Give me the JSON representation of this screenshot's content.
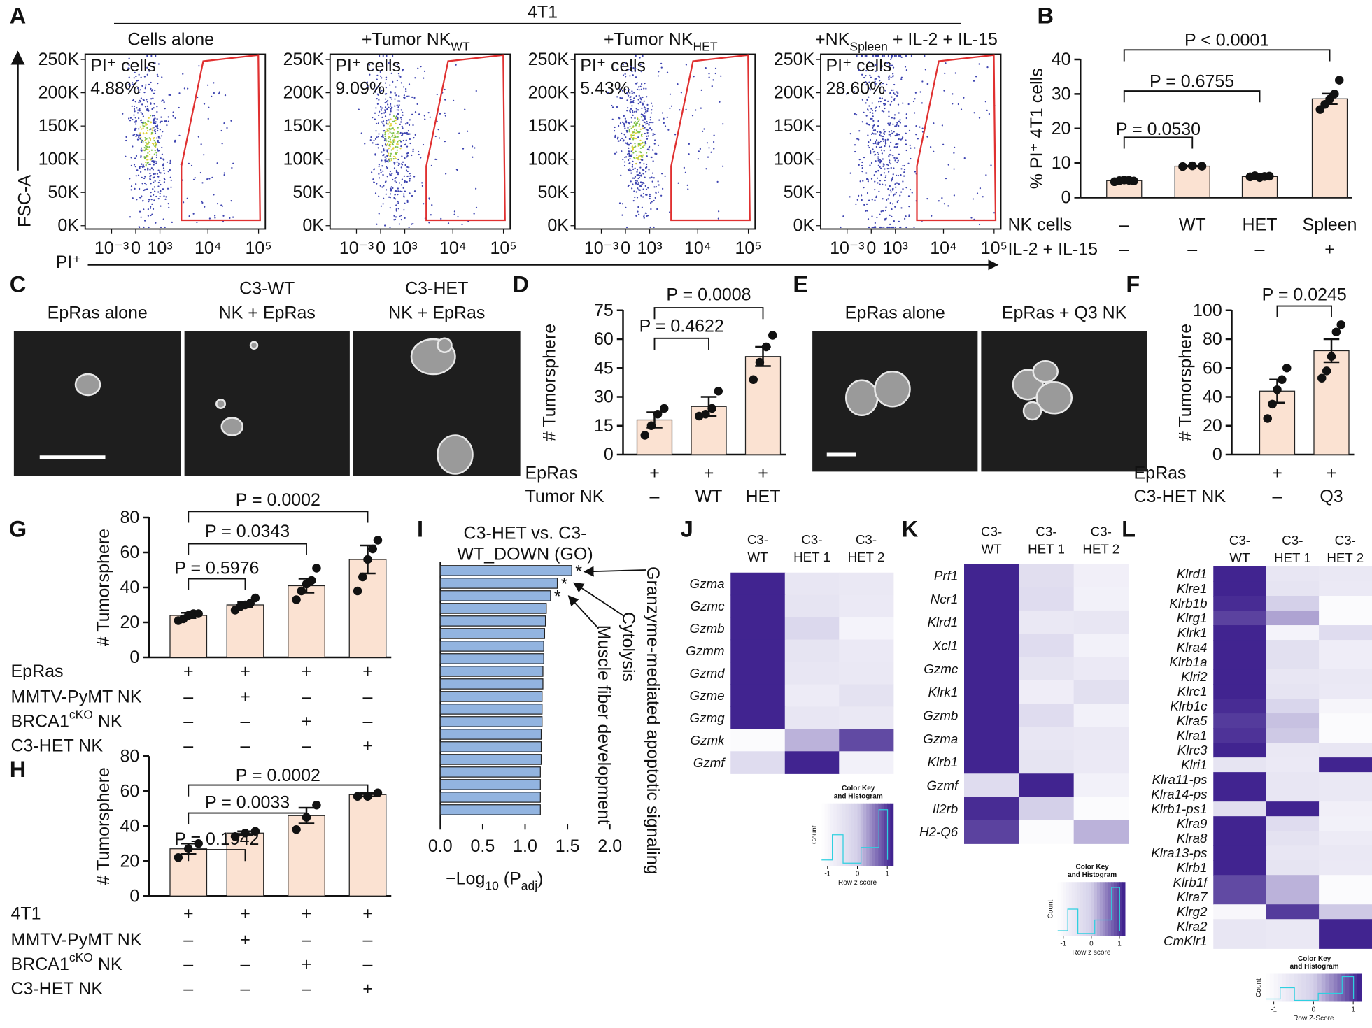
{
  "panel_labels": [
    "A",
    "B",
    "C",
    "D",
    "E",
    "F",
    "G",
    "H",
    "I",
    "J",
    "K",
    "L"
  ],
  "images": [
    {
      "labels": [
        "EpRas alone",
        [
          "C3-WT",
          "NK + EpRas"
        ],
        [
          "C3-HET",
          "NK + EpRas"
        ]
      ]
    },
    {
      "labels": [
        "EpRas alone",
        "EpRas + Q3 NK"
      ]
    }
  ],
  "chart_data": [
    {
      "type": "flow",
      "title": "4T1",
      "ylabel": "FSC-A",
      "xlabel": "PI⁺",
      "xscale": "biexponential",
      "plots": [
        {
          "title": "Cells alone",
          "gate_label": "PI⁺ cells",
          "percent": "4.88%"
        },
        {
          "title": [
            "+Tumor NK",
            "WT"
          ],
          "gate_label": "PI⁺ cells",
          "percent": "9.09%"
        },
        {
          "title": [
            "+Tumor NK",
            "HET"
          ],
          "gate_label": "PI⁺ cells",
          "percent": "5.43%"
        },
        {
          "title": [
            "+NK",
            "Spleen",
            " + IL-2 + IL-15"
          ],
          "gate_label": "PI⁺ cells",
          "percent": "28.60%"
        }
      ],
      "gate_color": "#e03030",
      "xlim": [
        -3700,
        136000
      ],
      "ylim": [
        -5000,
        258000
      ],
      "xticks": [
        {
          "value": -1000,
          "label": "10⁻³"
        },
        0,
        {
          "value": 1000,
          "label": "10³"
        },
        {
          "value": 10000,
          "label": "10⁴"
        },
        {
          "value": 100000,
          "label": "10⁵"
        }
      ],
      "yticks": [
        {
          "value": 0,
          "label": "0K"
        },
        {
          "value": 50000,
          "label": "50K"
        },
        {
          "value": 100000,
          "label": "100K"
        },
        {
          "value": 150000,
          "label": "150K"
        },
        {
          "value": 200000,
          "label": "200K"
        },
        {
          "value": 250000,
          "label": "250K"
        }
      ]
    },
    {
      "type": "bar",
      "ylabel": "% PI⁺ 4T1 cells",
      "values": [
        4.9,
        9.1,
        6.1,
        28.6
      ],
      "errors": [
        0.15,
        0.1,
        0.15,
        1.5
      ],
      "points": [
        [
          4.6,
          4.9,
          5.1,
          5.0,
          4.8
        ],
        [
          9.0,
          9.2,
          9.1
        ],
        [
          6.0,
          6.3,
          5.8,
          6.1,
          6.2
        ],
        [
          25.5,
          27,
          28.5,
          30,
          34
        ]
      ],
      "color": "#fbe2d2",
      "ylim": [
        0,
        40
      ],
      "yticks": [
        0,
        10,
        20,
        30,
        40
      ],
      "conditions": [
        {
          "label": "NK cells",
          "values": [
            "–",
            "WT",
            "HET",
            "Spleen"
          ]
        },
        {
          "label": "IL-2 + IL-15",
          "values": [
            "–",
            "–",
            "–",
            "+"
          ]
        }
      ],
      "comparisons": [
        "P = 0.0530",
        "P = 0.6755",
        "P < 0.0001"
      ]
    },
    {
      "type": "bar",
      "ylabel": "# Tumorsphere",
      "values": [
        18,
        25,
        51
      ],
      "errors": [
        4,
        5,
        5
      ],
      "points": [
        [
          10,
          15,
          21,
          24
        ],
        [
          20,
          21,
          24,
          33
        ],
        [
          39,
          48,
          56,
          62
        ]
      ],
      "color": "#fbe2d2",
      "ylim": [
        0,
        75
      ],
      "yticks": [
        0,
        15,
        30,
        45,
        60,
        75
      ],
      "conditions": [
        {
          "label": "EpRas",
          "values": [
            "+",
            "+",
            "+"
          ]
        },
        {
          "label": "Tumor NK",
          "values": [
            "–",
            "WT",
            "HET"
          ]
        }
      ],
      "comparisons": [
        "P = 0.4622",
        "P = 0.0008"
      ]
    },
    {
      "type": "bar",
      "ylabel": "# Tumorsphere",
      "values": [
        44,
        72
      ],
      "errors": [
        8,
        8
      ],
      "points": [
        [
          25,
          35,
          45,
          52,
          60
        ],
        [
          53,
          58,
          68,
          85,
          90
        ]
      ],
      "color": "#fbe2d2",
      "ylim": [
        0,
        100
      ],
      "yticks": [
        0,
        20,
        40,
        60,
        80,
        100
      ],
      "conditions": [
        {
          "label": "EpRas",
          "values": [
            "+",
            "+"
          ]
        },
        {
          "label": "C3-HET NK",
          "values": [
            "–",
            "Q3"
          ]
        }
      ],
      "comparisons": [
        "P = 0.0245"
      ]
    },
    {
      "type": "bar",
      "ylabel": "# Tumorsphere",
      "values": [
        24,
        30,
        41,
        56
      ],
      "errors": [
        1.5,
        1.5,
        4,
        8
      ],
      "points": [
        [
          21,
          22,
          24,
          25,
          25
        ],
        [
          27,
          29,
          30,
          31,
          34
        ],
        [
          33,
          38,
          42,
          44,
          51
        ],
        [
          38,
          46,
          56,
          62,
          67
        ]
      ],
      "color": "#fbe2d2",
      "ylim": [
        0,
        80
      ],
      "yticks": [
        0,
        20,
        40,
        60,
        80
      ],
      "conditions": [
        {
          "label": "EpRas",
          "values": [
            "+",
            "+",
            "+",
            "+"
          ]
        },
        {
          "label": "MMTV-PyMT NK",
          "values": [
            "–",
            "+",
            "–",
            "–"
          ]
        },
        {
          "label": [
            "BRCA1",
            "cKO",
            " NK"
          ],
          "values": [
            "–",
            "–",
            "+",
            "–"
          ]
        },
        {
          "label": "C3-HET NK",
          "values": [
            "–",
            "–",
            "–",
            "+"
          ]
        }
      ],
      "comparisons": [
        "P = 0.5976",
        "P = 0.0343",
        "P = 0.0002"
      ]
    },
    {
      "type": "bar",
      "ylabel": "# Tumorsphere",
      "values": [
        27,
        36,
        46,
        58
      ],
      "errors": [
        3,
        1,
        4.5,
        1
      ],
      "points": [
        [
          22,
          27,
          30
        ],
        [
          34,
          36,
          37
        ],
        [
          38,
          45,
          52
        ],
        [
          57,
          57,
          59
        ]
      ],
      "color": "#fbe2d2",
      "ylim": [
        0,
        80
      ],
      "yticks": [
        0,
        20,
        40,
        60,
        80
      ],
      "conditions": [
        {
          "label": "4T1",
          "values": [
            "+",
            "+",
            "+",
            "+"
          ]
        },
        {
          "label": "MMTV-PyMT NK",
          "values": [
            "–",
            "+",
            "–",
            "–"
          ]
        },
        {
          "label": [
            "BRCA1",
            "cKO",
            " NK"
          ],
          "values": [
            "–",
            "–",
            "+",
            "–"
          ]
        },
        {
          "label": "C3-HET NK",
          "values": [
            "–",
            "–",
            "–",
            "+"
          ]
        }
      ],
      "comparisons": [
        "P = 0.1942",
        "P = 0.0033",
        "P = 0.0002"
      ]
    },
    {
      "type": "barh",
      "title": [
        "C3-HET vs. C3-",
        "WT_DOWN (GO)"
      ],
      "xlabel": [
        "−Log",
        "10",
        " (P",
        "adj",
        ")"
      ],
      "categories": [
        null,
        null,
        null,
        null,
        null,
        null,
        null,
        null,
        null,
        null,
        null,
        null,
        null,
        null,
        null,
        null,
        null,
        null,
        null,
        null
      ],
      "values": [
        1.55,
        1.38,
        1.3,
        1.25,
        1.24,
        1.23,
        1.22,
        1.22,
        1.21,
        1.21,
        1.2,
        1.2,
        1.2,
        1.19,
        1.19,
        1.19,
        1.18,
        1.18,
        1.18,
        1.18
      ],
      "color": "#92b4e0",
      "xlim": [
        0,
        2
      ],
      "xticks": [
        {
          "value": 0,
          "label": "0.0"
        },
        {
          "value": 0.5,
          "label": "0.5"
        },
        {
          "value": 1,
          "label": "1.0"
        },
        {
          "value": 1.5,
          "label": "1.5"
        },
        {
          "value": 2,
          "label": "2.0"
        }
      ],
      "markers": [
        "*",
        "*",
        "*"
      ],
      "annotations": [
        "Granzyme-mediated apoptotic signaling",
        "Cytolysis",
        "Muscle fiber development"
      ]
    },
    {
      "type": "heatmap",
      "columns": [
        [
          "C3-",
          "WT"
        ],
        [
          "C3-",
          "HET 1"
        ],
        [
          "C3-",
          "HET 2"
        ]
      ],
      "rows": [
        "Gzma",
        "Gzmc",
        "Gzmb",
        "Gzmm",
        "Gzmd",
        "Gzme",
        "Gzmg",
        "Gzmk",
        "Gzmf"
      ],
      "values": [
        [
          1.15,
          -0.55,
          -0.6
        ],
        [
          1.15,
          -0.5,
          -0.65
        ],
        [
          1.15,
          -0.2,
          -0.9
        ],
        [
          1.15,
          -0.5,
          -0.65
        ],
        [
          1.15,
          -0.55,
          -0.6
        ],
        [
          1.15,
          -0.7,
          -0.45
        ],
        [
          1.15,
          -0.55,
          -0.6
        ],
        [
          -1.1,
          0.2,
          0.9
        ],
        [
          -0.3,
          1.15,
          -0.85
        ]
      ],
      "colorscale": [
        "#ffffff",
        "#d4d0e9",
        "#3b1d8c"
      ],
      "zlim": [
        -1.2,
        1.2
      ],
      "key_title": [
        "Color Key",
        "and Histogram"
      ],
      "key_xlabel": "Row z score",
      "key_ylabel": "Count",
      "key_ticks": [
        -1,
        0,
        1
      ]
    },
    {
      "type": "heatmap",
      "columns": [
        [
          "C3-",
          "WT"
        ],
        [
          "C3-",
          "HET 1"
        ],
        [
          "C3-",
          "HET 2"
        ]
      ],
      "rows": [
        "Prf1",
        "Ncr1",
        "Klrd1",
        "Xcl1",
        "Gzmc",
        "Klrk1",
        "Gzmb",
        "Gzma",
        "Klrb1",
        "Gzmf",
        "Il2rb",
        "H2-Q6"
      ],
      "values": [
        [
          1.15,
          -0.35,
          -0.8
        ],
        [
          1.15,
          -0.3,
          -0.85
        ],
        [
          1.15,
          -0.6,
          -0.55
        ],
        [
          1.15,
          -0.3,
          -0.85
        ],
        [
          1.15,
          -0.5,
          -0.65
        ],
        [
          1.15,
          -0.75,
          -0.4
        ],
        [
          1.15,
          -0.3,
          -0.85
        ],
        [
          1.15,
          -0.55,
          -0.6
        ],
        [
          1.15,
          -0.5,
          -0.65
        ],
        [
          -0.3,
          1.15,
          -0.85
        ],
        [
          1.1,
          0.0,
          -1.1
        ],
        [
          0.95,
          -1.1,
          0.2
        ]
      ],
      "colorscale": [
        "#ffffff",
        "#d4d0e9",
        "#3b1d8c"
      ],
      "zlim": [
        -1.2,
        1.2
      ],
      "key_title": [
        "Color Key",
        "and Histogram"
      ],
      "key_xlabel": "Row z score",
      "key_ylabel": "Count",
      "key_ticks": [
        -1,
        0,
        1
      ]
    },
    {
      "type": "heatmap",
      "columns": [
        [
          "C3-",
          "WT"
        ],
        [
          "C3-",
          "HET 1"
        ],
        [
          "C3-",
          "HET 2"
        ]
      ],
      "rows": [
        "Klrd1",
        "Klre1",
        "Klrb1b",
        "Klrg1",
        "Klrk1",
        "Klra4",
        "Klrb1a",
        "Klri2",
        "Klrc1",
        "Klrb1c",
        "Klra5",
        "Klra1",
        "Klrc3",
        "Klri1",
        "Klra11-ps",
        "Klra14-ps",
        "Klrb1-ps1",
        "Klra9",
        "Klra8",
        "Klra13-ps",
        "Klrb1",
        "Klrb1f",
        "Klra7",
        "Klrg2",
        "Klra2",
        "CmKlr1"
      ],
      "values": [
        [
          1.15,
          -0.55,
          -0.6
        ],
        [
          1.15,
          -0.5,
          -0.65
        ],
        [
          1.1,
          0.0,
          -1.1
        ],
        [
          0.95,
          0.3,
          -1.1
        ],
        [
          1.15,
          -0.9,
          -0.3
        ],
        [
          1.15,
          -0.4,
          -0.75
        ],
        [
          1.15,
          -0.4,
          -0.75
        ],
        [
          1.15,
          -0.55,
          -0.6
        ],
        [
          1.15,
          -0.5,
          -0.65
        ],
        [
          1.1,
          -0.15,
          -0.95
        ],
        [
          1.0,
          0.1,
          -1.1
        ],
        [
          1.05,
          0.05,
          -1.1
        ],
        [
          1.15,
          -0.6,
          -0.55
        ],
        [
          -0.5,
          -0.65,
          1.15
        ],
        [
          1.15,
          -0.55,
          -0.6
        ],
        [
          1.15,
          -0.55,
          -0.6
        ],
        [
          -0.35,
          1.15,
          -0.8
        ],
        [
          1.15,
          -0.3,
          -0.85
        ],
        [
          1.15,
          -0.45,
          -0.7
        ],
        [
          1.15,
          -0.55,
          -0.6
        ],
        [
          1.15,
          -0.5,
          -0.65
        ],
        [
          0.9,
          0.2,
          -1.1
        ],
        [
          0.9,
          0.2,
          -1.1
        ],
        [
          -1.0,
          1.0,
          0.05
        ],
        [
          -0.55,
          -0.6,
          1.15
        ],
        [
          -0.55,
          -0.6,
          1.15
        ]
      ],
      "colorscale": [
        "#ffffff",
        "#d4d0e9",
        "#3b1d8c"
      ],
      "zlim": [
        -1.2,
        1.2
      ],
      "key_title": [
        "Color Key",
        "and Histogram"
      ],
      "key_xlabel": "Row Z-Score",
      "key_ylabel": "Count",
      "key_ticks": [
        -1,
        0,
        1
      ]
    }
  ]
}
